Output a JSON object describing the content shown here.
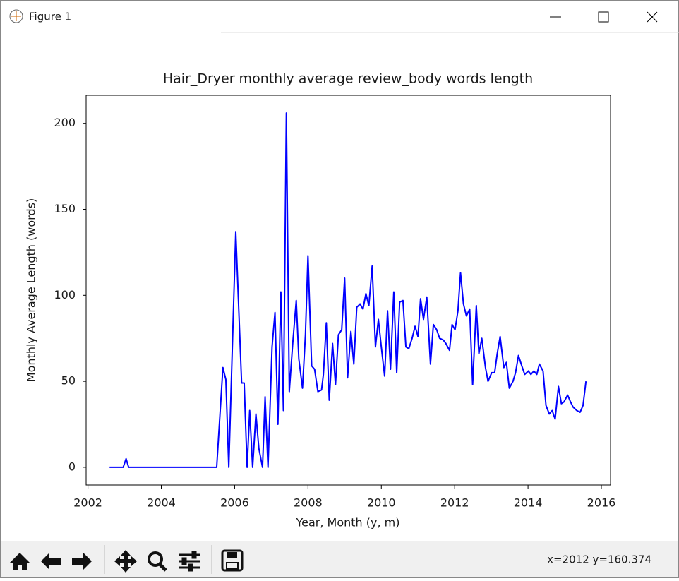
{
  "window": {
    "title": "Figure 1",
    "status": "x=2012 y=160.374"
  },
  "chart_data": {
    "type": "line",
    "title": "Hair_Dryer monthly average review_body words length",
    "x_label": "Year, Month (y, m)",
    "y_label": "Monthly Average Length (words)",
    "color": "#0000ff",
    "xlim": [
      2001.95,
      2016.25
    ],
    "ylim": [
      -10.3,
      216.3
    ],
    "xticks": [
      2002,
      2004,
      2006,
      2008,
      2010,
      2012,
      2014,
      2016
    ],
    "yticks": [
      0,
      50,
      100,
      150,
      200
    ],
    "x": [
      2002.59,
      2002.96,
      2003.04,
      2003.11,
      2005.51,
      2005.68,
      2005.76,
      2005.84,
      2006.03,
      2006.19,
      2006.26,
      2006.34,
      2006.41,
      2006.49,
      2006.58,
      2006.66,
      2006.76,
      2006.83,
      2006.91,
      2007.02,
      2007.1,
      2007.18,
      2007.26,
      2007.33,
      2007.41,
      2007.49,
      2007.58,
      2007.68,
      2007.75,
      2007.85,
      2007.93,
      2008.0,
      2008.1,
      2008.18,
      2008.27,
      2008.37,
      2008.42,
      2008.5,
      2008.58,
      2008.67,
      2008.75,
      2008.83,
      2008.92,
      2009.0,
      2009.08,
      2009.17,
      2009.25,
      2009.33,
      2009.42,
      2009.5,
      2009.58,
      2009.66,
      2009.75,
      2009.84,
      2009.92,
      2010.0,
      2010.09,
      2010.17,
      2010.25,
      2010.34,
      2010.42,
      2010.5,
      2010.59,
      2010.67,
      2010.75,
      2010.84,
      2010.92,
      2011.0,
      2011.07,
      2011.15,
      2011.24,
      2011.34,
      2011.42,
      2011.51,
      2011.59,
      2011.69,
      2011.76,
      2011.86,
      2011.93,
      2012.01,
      2012.09,
      2012.16,
      2012.24,
      2012.32,
      2012.41,
      2012.49,
      2012.59,
      2012.66,
      2012.74,
      2012.84,
      2012.91,
      2013.01,
      2013.09,
      2013.16,
      2013.24,
      2013.34,
      2013.41,
      2013.49,
      2013.59,
      2013.66,
      2013.74,
      2013.83,
      2013.91,
      2014.01,
      2014.08,
      2014.16,
      2014.24,
      2014.31,
      2014.41,
      2014.49,
      2014.58,
      2014.66,
      2014.74,
      2014.83,
      2014.91,
      2014.98,
      2015.08,
      2015.16,
      2015.23,
      2015.33,
      2015.42,
      2015.5,
      2015.58
    ],
    "values": [
      0,
      0,
      5,
      0,
      0,
      58,
      51,
      0,
      137,
      49,
      49,
      0,
      33,
      0,
      31,
      11,
      0,
      41,
      0,
      70,
      90,
      25,
      102,
      33,
      206,
      44,
      71,
      97,
      63,
      46,
      77,
      123,
      59,
      57,
      44,
      45,
      54,
      84,
      39,
      72,
      48,
      77,
      80,
      110,
      52,
      79,
      60,
      93,
      95,
      92,
      101,
      94,
      117,
      70,
      86,
      70,
      53,
      91,
      57,
      102,
      55,
      96,
      97,
      70,
      69,
      75,
      82,
      76,
      98,
      86,
      99,
      60,
      83,
      80,
      75,
      74,
      72,
      68,
      83,
      80,
      91,
      113,
      95,
      88,
      92,
      48,
      94,
      66,
      75,
      58,
      50,
      55,
      55,
      66,
      76,
      58,
      61,
      46,
      50,
      55,
      65,
      59,
      54,
      56,
      54,
      56,
      54,
      60,
      56,
      36,
      31,
      33,
      28,
      47,
      37,
      38,
      42,
      38,
      35,
      33,
      32,
      36,
      50
    ]
  }
}
